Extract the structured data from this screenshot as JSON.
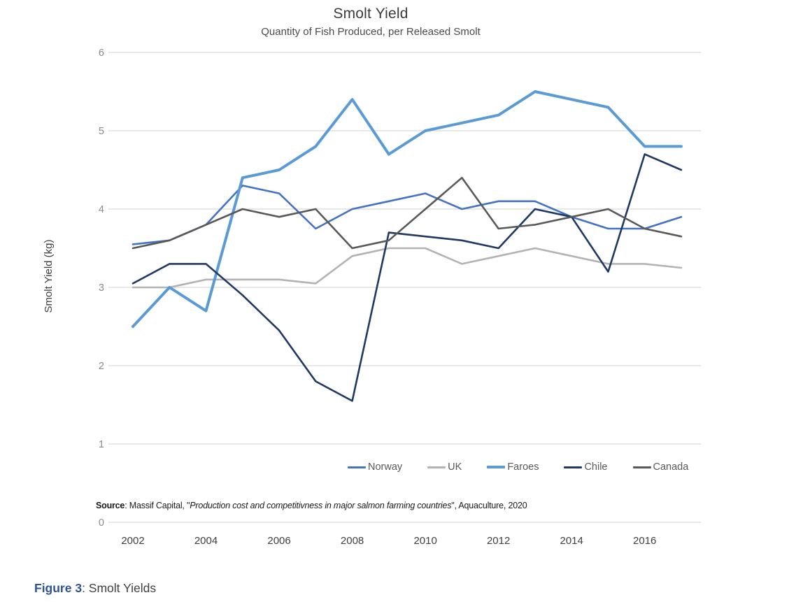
{
  "caption": {
    "number": "Figure 3",
    "text": ": Smolt Yields",
    "number_color": "#2F5496"
  },
  "source": {
    "label": "Source",
    "pre": ": Massif Capital, \"",
    "quote": "Production cost and competitivness in major salmon farming countries",
    "post": "\", Aquaculture, 2020"
  },
  "chart_data": {
    "type": "line",
    "title": "Smolt Yield",
    "subtitle": "Quantity of Fish Produced, per Released Smolt",
    "ylabel": "Smolt Yield (kg)",
    "xlabel": "",
    "ylim": [
      0,
      6
    ],
    "y_ticks": [
      0,
      1,
      2,
      3,
      4,
      5,
      6
    ],
    "grid": "horizontal",
    "gridline_color": "#D9D9D9",
    "legend_position": "bottom-inside-right",
    "x": [
      2002,
      2003,
      2004,
      2005,
      2006,
      2007,
      2008,
      2009,
      2010,
      2011,
      2012,
      2013,
      2014,
      2015,
      2016,
      2017
    ],
    "x_tick_labels": [
      "2002",
      "2004",
      "2006",
      "2008",
      "2010",
      "2012",
      "2014",
      "2016"
    ],
    "series": [
      {
        "name": "Norway",
        "color": "#4472C4",
        "width": 2.6,
        "values": [
          3.55,
          3.6,
          3.8,
          4.3,
          4.2,
          3.75,
          4.0,
          4.1,
          4.2,
          4.0,
          4.1,
          4.1,
          3.9,
          3.75,
          3.75,
          3.9
        ]
      },
      {
        "name": "UK",
        "color": "#B3B3B3",
        "width": 2.6,
        "values": [
          3.0,
          3.0,
          3.1,
          3.1,
          3.1,
          3.05,
          3.4,
          3.5,
          3.5,
          3.3,
          3.4,
          3.5,
          3.4,
          3.3,
          3.3,
          3.25
        ]
      },
      {
        "name": "Faroes",
        "color": "#5B9BD5",
        "width": 4,
        "values": [
          2.5,
          3.0,
          2.7,
          4.4,
          4.5,
          4.8,
          5.4,
          4.7,
          5.0,
          5.1,
          5.2,
          5.5,
          5.4,
          5.3,
          4.8,
          4.8
        ]
      },
      {
        "name": "Chile",
        "color": "#203864",
        "width": 2.6,
        "values": [
          3.05,
          3.3,
          3.3,
          2.9,
          2.45,
          1.8,
          1.55,
          3.7,
          3.65,
          3.6,
          3.5,
          4.0,
          3.9,
          3.2,
          4.7,
          4.5
        ]
      },
      {
        "name": "Canada",
        "color": "#595959",
        "width": 2.6,
        "values": [
          3.5,
          3.6,
          3.8,
          4.0,
          3.9,
          4.0,
          3.5,
          3.6,
          4.0,
          4.4,
          3.75,
          3.8,
          3.9,
          4.0,
          3.75,
          3.65
        ]
      }
    ]
  }
}
